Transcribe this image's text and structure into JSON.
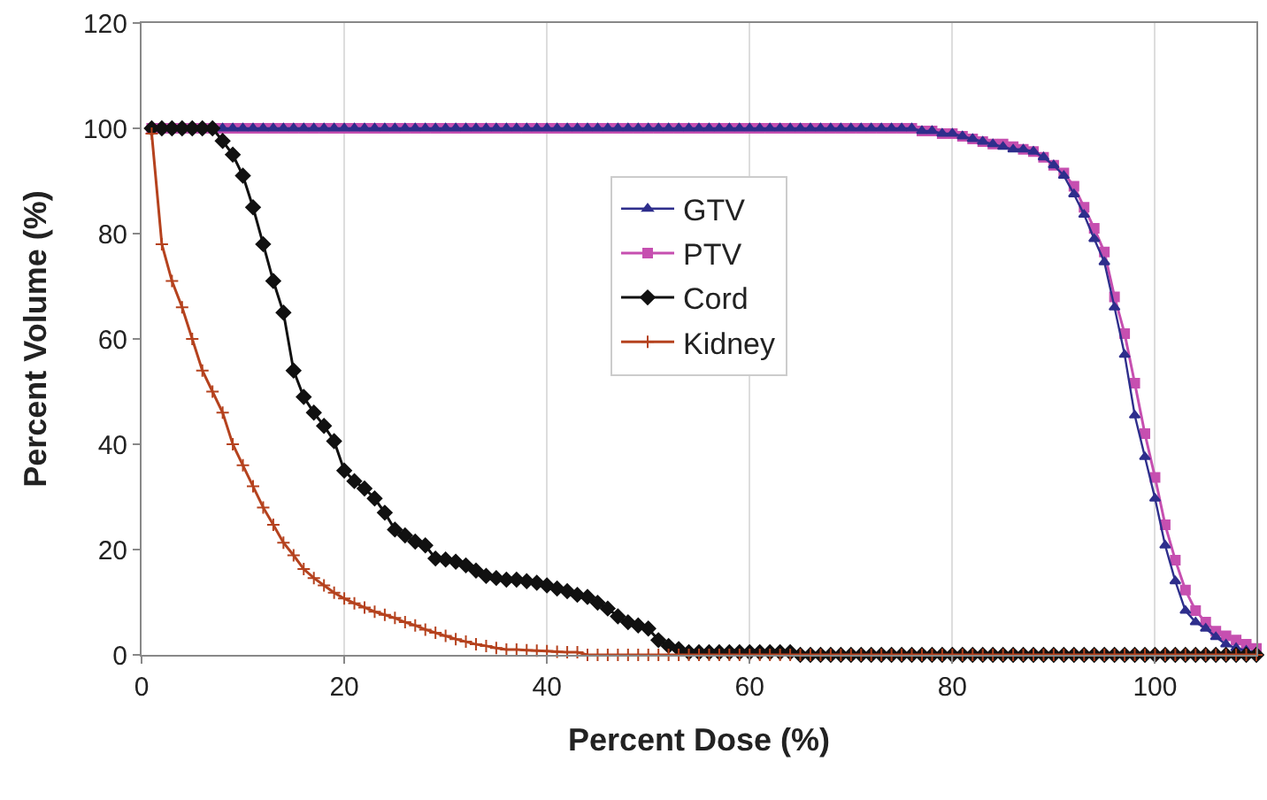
{
  "chart_data": {
    "type": "line",
    "xlabel": "Percent Dose (%)",
    "ylabel": "Percent Volume (%)",
    "x": [
      1,
      2,
      3,
      4,
      5,
      6,
      7,
      8,
      9,
      10,
      11,
      12,
      13,
      14,
      15,
      16,
      17,
      18,
      19,
      20,
      21,
      22,
      23,
      24,
      25,
      26,
      27,
      28,
      29,
      30,
      31,
      32,
      33,
      34,
      35,
      36,
      37,
      38,
      39,
      40,
      41,
      42,
      43,
      44,
      45,
      46,
      47,
      48,
      49,
      50,
      51,
      52,
      53,
      54,
      55,
      56,
      57,
      58,
      59,
      60,
      61,
      62,
      63,
      64,
      65,
      66,
      67,
      68,
      69,
      70,
      71,
      72,
      73,
      74,
      75,
      76,
      77,
      78,
      79,
      80,
      81,
      82,
      83,
      84,
      85,
      86,
      87,
      88,
      89,
      90,
      91,
      92,
      93,
      94,
      95,
      96,
      97,
      98,
      99,
      100,
      101,
      102,
      103,
      104,
      105,
      106,
      107,
      108,
      109,
      110
    ],
    "xlim": [
      0,
      110
    ],
    "xticks": [
      0,
      20,
      40,
      60,
      80,
      100
    ],
    "ylim": [
      0,
      120
    ],
    "yticks": [
      0,
      20,
      40,
      60,
      80,
      100,
      120
    ],
    "grid": "x",
    "legend": "center",
    "line_style": "solid",
    "series": [
      {
        "name": "GTV",
        "color": "#2e2e8c",
        "marker": "triangle",
        "values": [
          null,
          null,
          null,
          null,
          null,
          100,
          100,
          100,
          100,
          100,
          100,
          100,
          100,
          100,
          100,
          100,
          100,
          100,
          100,
          100,
          100,
          100,
          100,
          100,
          100,
          100,
          100,
          100,
          100,
          100,
          100,
          100,
          100,
          100,
          100,
          100,
          100,
          100,
          100,
          100,
          100,
          100,
          100,
          100,
          100,
          100,
          100,
          100,
          100,
          100,
          100,
          100,
          100,
          100,
          100,
          100,
          100,
          100,
          100,
          100,
          100,
          100,
          100,
          100,
          100,
          100,
          100,
          100,
          100,
          100,
          100,
          100,
          100,
          100,
          100,
          100,
          99.5,
          99.5,
          99,
          99,
          98.5,
          98,
          97.5,
          97,
          96.5,
          96,
          96,
          95.6,
          94.5,
          93,
          91,
          87.5,
          83.6,
          79,
          74.6,
          66,
          57,
          45.5,
          37.6,
          29.7,
          20.8,
          14,
          8.4,
          6.2,
          5,
          3.4,
          2,
          1.3,
          0.8,
          0.5
        ]
      },
      {
        "name": "PTV",
        "color": "#c64fb0",
        "marker": "square",
        "values": [
          100,
          100,
          100,
          100,
          100,
          100,
          100,
          100,
          100,
          100,
          100,
          100,
          100,
          100,
          100,
          100,
          100,
          100,
          100,
          100,
          100,
          100,
          100,
          100,
          100,
          100,
          100,
          100,
          100,
          100,
          100,
          100,
          100,
          100,
          100,
          100,
          100,
          100,
          100,
          100,
          100,
          100,
          100,
          100,
          100,
          100,
          100,
          100,
          100,
          100,
          100,
          100,
          100,
          100,
          100,
          100,
          100,
          100,
          100,
          100,
          100,
          100,
          100,
          100,
          100,
          100,
          100,
          100,
          100,
          100,
          100,
          100,
          100,
          100,
          100,
          100,
          99.5,
          99.5,
          99,
          99,
          98.5,
          98,
          97.5,
          97,
          97,
          96.5,
          96,
          95.6,
          94.5,
          93,
          91.5,
          89,
          85,
          81,
          76.5,
          68,
          61,
          51.6,
          42,
          33.7,
          24.7,
          18,
          12.3,
          8.4,
          6.2,
          4.5,
          3.6,
          2.8,
          2,
          1.2
        ]
      },
      {
        "name": "Cord",
        "color": "#111111",
        "marker": "diamond",
        "values": [
          100,
          100,
          100,
          100,
          100,
          100,
          100,
          97.6,
          95,
          91,
          85,
          78,
          71,
          65,
          54,
          49,
          46,
          43.5,
          40.6,
          35,
          33,
          31.6,
          29.7,
          27,
          23.8,
          22.7,
          21.5,
          20.8,
          18.3,
          18.1,
          17.7,
          17,
          16,
          15,
          14.6,
          14.3,
          14.3,
          14,
          13.7,
          13.2,
          12.6,
          12.1,
          11.4,
          11,
          9.9,
          8.8,
          7.3,
          6.2,
          5.6,
          5,
          2.8,
          1.7,
          1.1,
          0.5,
          0.5,
          0.5,
          0.5,
          0.5,
          0.5,
          0.5,
          0.5,
          0.5,
          0.5,
          0.5,
          0,
          0,
          0,
          0,
          0,
          0,
          0,
          0,
          0,
          0,
          0,
          0,
          0,
          0,
          0,
          0,
          0,
          0,
          0,
          0,
          0,
          0,
          0,
          0,
          0,
          0,
          0,
          0,
          0,
          0,
          0,
          0,
          0,
          0,
          0,
          0,
          0,
          0,
          0,
          0,
          0,
          0,
          0,
          0,
          0,
          0
        ]
      },
      {
        "name": "Kidney",
        "color": "#b5421e",
        "marker": "cross",
        "values": [
          99,
          78,
          71,
          66,
          60,
          54,
          50,
          46,
          40,
          36,
          32,
          28,
          24.7,
          21.3,
          18.9,
          16.3,
          14.6,
          13.2,
          11.8,
          10.7,
          9.8,
          9,
          8.2,
          7.6,
          7,
          6.2,
          5.6,
          4.8,
          4.2,
          3.6,
          3,
          2.5,
          2,
          1.7,
          1.3,
          1,
          1,
          0.9,
          0.8,
          0.7,
          0.6,
          0.5,
          0.5,
          0,
          0,
          0,
          0,
          0,
          0,
          0,
          0,
          0,
          0,
          0,
          0,
          0,
          0,
          0,
          0,
          0,
          0,
          0,
          0,
          0,
          0,
          0,
          0,
          0,
          0,
          0,
          0,
          0,
          0,
          0,
          0,
          0,
          0,
          0,
          0,
          0,
          0,
          0,
          0,
          0,
          0,
          0,
          0,
          0,
          0,
          0,
          0,
          0,
          0,
          0,
          0,
          0,
          0,
          0,
          0,
          0,
          0,
          0,
          0,
          0,
          0,
          0,
          0,
          0,
          0,
          0
        ]
      }
    ]
  }
}
